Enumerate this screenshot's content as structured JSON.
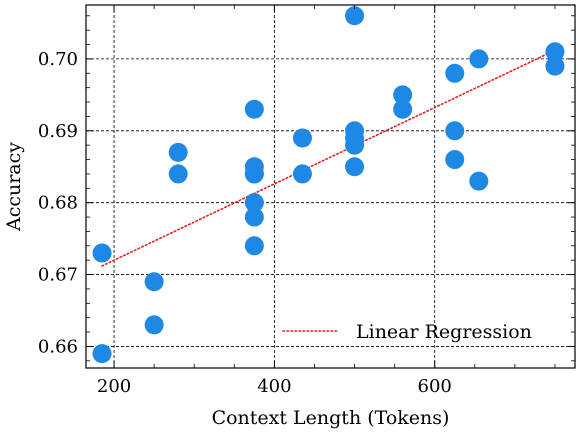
{
  "chart_data": {
    "type": "scatter",
    "xlabel": "Context Length (Tokens)",
    "ylabel": "Accuracy",
    "xlim": [
      165,
      775
    ],
    "ylim": [
      0.657,
      0.7075
    ],
    "xticks": [
      200,
      400,
      600
    ],
    "xtick_labels": [
      "200",
      "400",
      "600"
    ],
    "yticks": [
      0.66,
      0.67,
      0.68,
      0.69,
      0.7
    ],
    "ytick_labels": [
      "0.66",
      "0.67",
      "0.68",
      "0.69",
      "0.70"
    ],
    "grid": true,
    "legend_position": "bottom-right",
    "point_color": "#1E88E5",
    "line_color": "#E02020",
    "series": [
      {
        "type": "scatter",
        "x": [
          185,
          185,
          250,
          250,
          280,
          280,
          375,
          375,
          375,
          375,
          375,
          375,
          375,
          435,
          435,
          500,
          500,
          500,
          500,
          500,
          560,
          560,
          625,
          625,
          625,
          655,
          655,
          750,
          750
        ],
        "y": [
          0.673,
          0.659,
          0.669,
          0.663,
          0.687,
          0.684,
          0.693,
          0.685,
          0.684,
          0.68,
          0.678,
          0.674,
          0.684,
          0.689,
          0.684,
          0.706,
          0.69,
          0.688,
          0.685,
          0.689,
          0.695,
          0.693,
          0.698,
          0.69,
          0.686,
          0.7,
          0.683,
          0.701,
          0.699
        ]
      },
      {
        "name": "Linear Regression",
        "type": "line",
        "style": "dotted",
        "x": [
          185,
          750
        ],
        "y": [
          0.6712,
          0.7012
        ]
      }
    ]
  }
}
